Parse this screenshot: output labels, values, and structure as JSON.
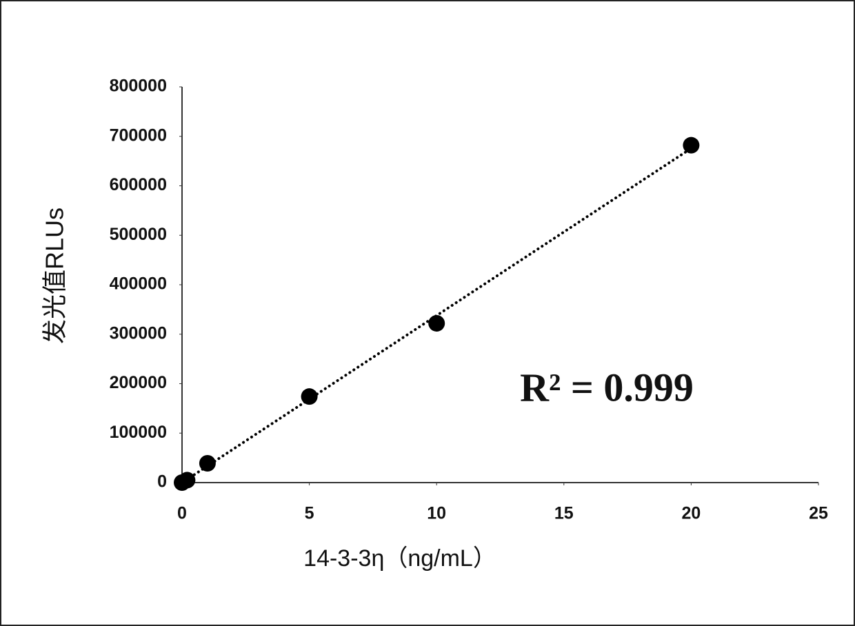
{
  "chart_data": {
    "type": "scatter",
    "x": [
      0,
      0.2,
      1,
      5,
      10,
      20
    ],
    "values": [
      0,
      5000,
      39000,
      174000,
      322000,
      682000
    ],
    "color": "#000000",
    "x_label": "14-3-3η（ng/mL）",
    "y_label": "发光值RLUs",
    "annotation": "R² = 0.999",
    "trendline": true,
    "grid": false,
    "xlim": [
      0,
      25
    ],
    "xticks": [
      0,
      5,
      10,
      15,
      20,
      25
    ],
    "ylim": [
      0,
      800000
    ],
    "yticks": [
      0,
      100000,
      200000,
      300000,
      400000,
      500000,
      600000,
      700000,
      800000
    ]
  }
}
